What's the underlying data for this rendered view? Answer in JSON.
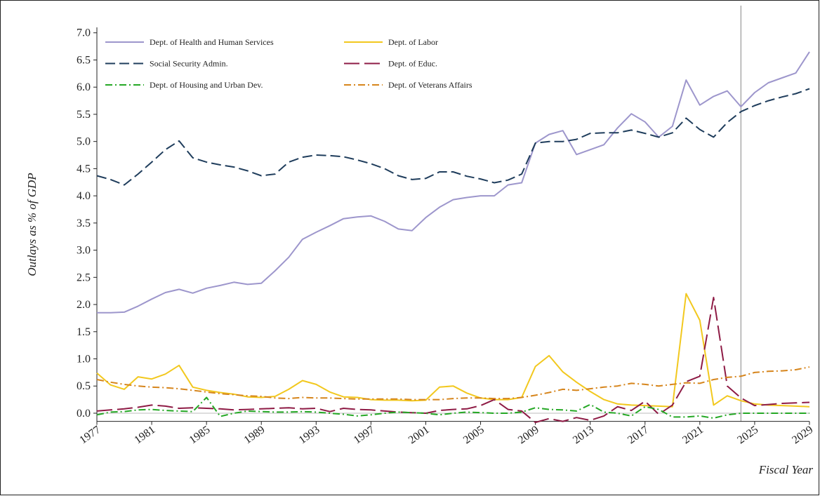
{
  "chart_data": {
    "type": "line",
    "ylabel": "Outlays as % of GDP",
    "xlabel": "Fiscal Year",
    "x": [
      1977,
      1978,
      1979,
      1980,
      1981,
      1982,
      1983,
      1984,
      1985,
      1986,
      1987,
      1988,
      1989,
      1990,
      1991,
      1992,
      1993,
      1994,
      1995,
      1996,
      1997,
      1998,
      1999,
      2000,
      2001,
      2002,
      2003,
      2004,
      2005,
      2006,
      2007,
      2008,
      2009,
      2010,
      2011,
      2012,
      2013,
      2014,
      2015,
      2016,
      2017,
      2018,
      2019,
      2020,
      2021,
      2022,
      2023,
      2024,
      2025,
      2026,
      2027,
      2028,
      2029
    ],
    "xlim": [
      1977,
      2029
    ],
    "xticks": [
      1977,
      1981,
      1985,
      1989,
      1993,
      1997,
      2001,
      2005,
      2009,
      2013,
      2017,
      2021,
      2025,
      2029
    ],
    "ylim": [
      -0.15,
      7.1
    ],
    "yticks": [
      {
        "value": 0,
        "label": "0.0"
      },
      0.5,
      {
        "value": 1,
        "label": "1.0"
      },
      1.5,
      {
        "value": 2,
        "label": "2.0"
      },
      2.5,
      {
        "value": 3,
        "label": "3.0"
      },
      3.5,
      {
        "value": 4,
        "label": "4.0"
      },
      4.5,
      {
        "value": 5,
        "label": "5.0"
      },
      5.5,
      {
        "value": 6,
        "label": "6.0"
      },
      6.5,
      {
        "value": 7,
        "label": "7.0"
      }
    ],
    "reference_x": 2024,
    "reference_y": 0,
    "legend": "upper left",
    "series": [
      {
        "name": "Dept. of Health and Human Services",
        "color": "#9d96cc",
        "dash": "solid",
        "values": [
          1.85,
          1.85,
          1.86,
          1.97,
          2.1,
          2.22,
          2.28,
          2.21,
          2.3,
          2.35,
          2.41,
          2.37,
          2.39,
          2.62,
          2.87,
          3.2,
          3.33,
          3.45,
          3.58,
          3.61,
          3.63,
          3.53,
          3.39,
          3.36,
          3.6,
          3.79,
          3.93,
          3.97,
          4.0,
          4.0,
          4.2,
          4.24,
          4.97,
          5.13,
          5.2,
          4.76,
          4.85,
          4.94,
          5.25,
          5.51,
          5.36,
          5.08,
          5.28,
          6.13,
          5.67,
          5.83,
          5.93,
          5.64,
          5.9,
          6.08,
          6.17,
          6.26,
          6.65
        ]
      },
      {
        "name": "Dept. of Labor",
        "color": "#f2c81e",
        "dash": "solid",
        "values": [
          0.74,
          0.52,
          0.44,
          0.67,
          0.63,
          0.72,
          0.88,
          0.48,
          0.42,
          0.38,
          0.35,
          0.3,
          0.29,
          0.31,
          0.44,
          0.6,
          0.53,
          0.39,
          0.3,
          0.29,
          0.25,
          0.24,
          0.24,
          0.23,
          0.24,
          0.48,
          0.5,
          0.37,
          0.28,
          0.25,
          0.25,
          0.29,
          0.86,
          1.06,
          0.76,
          0.57,
          0.4,
          0.25,
          0.17,
          0.15,
          0.14,
          0.13,
          0.12,
          2.2,
          1.71,
          0.15,
          0.32,
          0.23,
          0.17,
          0.15,
          0.14,
          0.13,
          0.12
        ]
      },
      {
        "name": "Social Security Admin.",
        "color": "#1f3d5c",
        "dash": "dashed",
        "values": [
          4.37,
          4.3,
          4.2,
          4.4,
          4.62,
          4.85,
          5.01,
          4.7,
          4.62,
          4.57,
          4.53,
          4.46,
          4.37,
          4.4,
          4.62,
          4.71,
          4.75,
          4.74,
          4.72,
          4.66,
          4.59,
          4.5,
          4.37,
          4.3,
          4.32,
          4.44,
          4.44,
          4.36,
          4.31,
          4.24,
          4.29,
          4.4,
          4.97,
          5.0,
          5.0,
          5.04,
          5.15,
          5.16,
          5.16,
          5.21,
          5.15,
          5.08,
          5.16,
          5.43,
          5.22,
          5.08,
          5.35,
          5.55,
          5.66,
          5.75,
          5.82,
          5.88,
          5.97
        ]
      },
      {
        "name": "Dept. of Educ.",
        "color": "#8e1b45",
        "dash": "longdash",
        "values": [
          0.04,
          0.06,
          0.08,
          0.11,
          0.15,
          0.13,
          0.09,
          0.1,
          0.09,
          0.08,
          0.06,
          0.07,
          0.08,
          0.09,
          0.1,
          0.08,
          0.09,
          0.03,
          0.09,
          0.07,
          0.06,
          0.04,
          0.02,
          0.01,
          0.0,
          0.05,
          0.07,
          0.08,
          0.14,
          0.25,
          0.07,
          0.04,
          -0.17,
          -0.1,
          -0.15,
          -0.08,
          -0.13,
          -0.05,
          0.12,
          0.05,
          0.22,
          -0.02,
          0.15,
          0.58,
          0.68,
          2.13,
          0.5,
          0.28,
          0.14,
          0.16,
          0.18,
          0.19,
          0.2
        ]
      },
      {
        "name": "Dept. of Housing and Urban Dev.",
        "color": "#25a825",
        "dash": "dashdot",
        "values": [
          -0.03,
          0.02,
          0.03,
          0.06,
          0.07,
          0.05,
          0.04,
          0.03,
          0.29,
          -0.06,
          0.0,
          0.04,
          0.03,
          0.02,
          0.02,
          0.03,
          0.02,
          0.0,
          -0.02,
          -0.05,
          -0.03,
          0.0,
          0.02,
          0.01,
          0.0,
          -0.03,
          0.0,
          0.02,
          0.01,
          0.0,
          0.0,
          0.02,
          0.1,
          0.07,
          0.06,
          0.04,
          0.16,
          0.02,
          0.0,
          -0.05,
          0.12,
          0.07,
          -0.07,
          -0.07,
          -0.05,
          -0.09,
          -0.03,
          0.0,
          0.0,
          0.0,
          0.0,
          0.0,
          0.0
        ]
      },
      {
        "name": "Dept. of Veterans Affairs",
        "color": "#d6851c",
        "dash": "dashdot",
        "values": [
          0.62,
          0.57,
          0.53,
          0.5,
          0.48,
          0.47,
          0.45,
          0.42,
          0.39,
          0.36,
          0.34,
          0.32,
          0.31,
          0.28,
          0.27,
          0.29,
          0.28,
          0.28,
          0.27,
          0.26,
          0.26,
          0.26,
          0.26,
          0.25,
          0.25,
          0.25,
          0.27,
          0.28,
          0.28,
          0.27,
          0.27,
          0.29,
          0.33,
          0.38,
          0.44,
          0.42,
          0.45,
          0.48,
          0.5,
          0.55,
          0.53,
          0.5,
          0.53,
          0.56,
          0.55,
          0.62,
          0.66,
          0.68,
          0.75,
          0.77,
          0.78,
          0.8,
          0.85
        ]
      }
    ]
  }
}
